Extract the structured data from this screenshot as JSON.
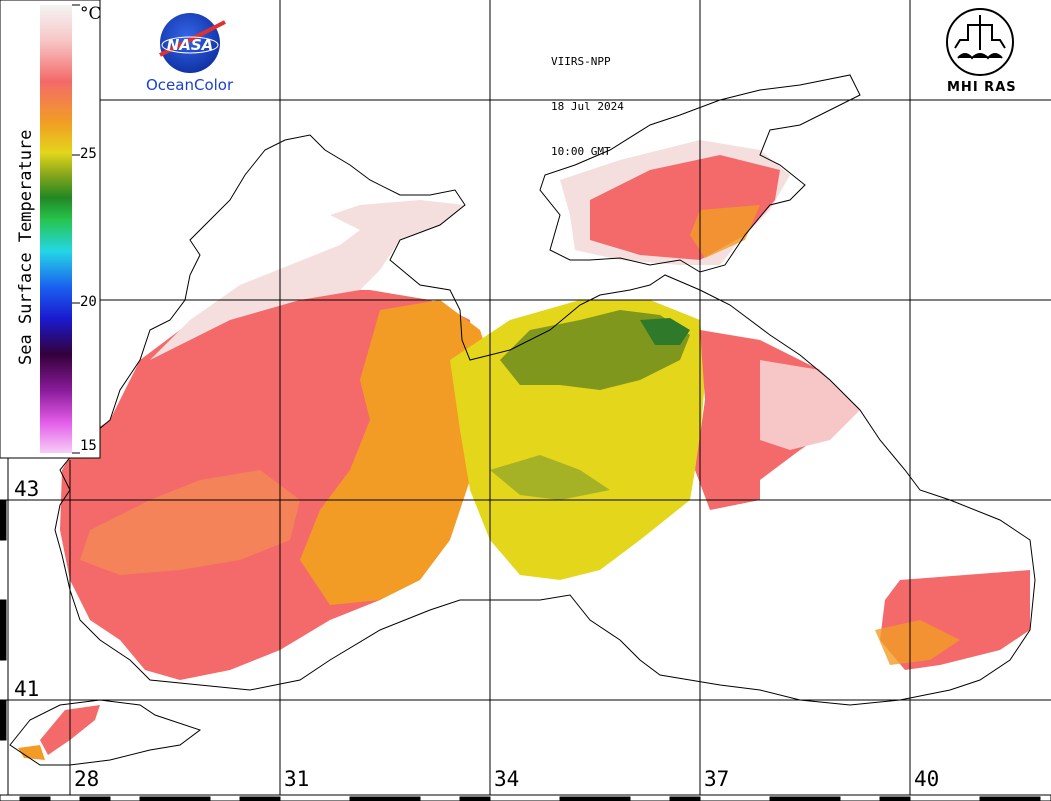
{
  "header": {
    "sensor": "VIIRS-NPP",
    "date": "18 Jul 2024",
    "time": "10:00 GMT"
  },
  "logos": {
    "nasa_text": "NASA",
    "oceancolor": "OceanColor",
    "mhi": "MHI RAS"
  },
  "colorbar": {
    "title": "Sea Surface Temperature",
    "unit": "°C",
    "ticks": [
      "25",
      "20",
      "15"
    ],
    "palette": [
      "#f4f4f4",
      "#f7c6c6",
      "#f46a6a",
      "#f29c25",
      "#e3d61b",
      "#85a51c",
      "#228822",
      "#27c54f",
      "#24d6e5",
      "#1a60f0",
      "#1a1ad0",
      "#33003a",
      "#8a1b9a",
      "#e25be7",
      "#f7cdf7"
    ]
  },
  "axes": {
    "latitudes": [
      "43",
      "41"
    ],
    "longitudes": [
      "28",
      "31",
      "34",
      "37",
      "40"
    ]
  },
  "colors": {
    "sst_warm": "#f46a6a",
    "sst_orange": "#f29c25",
    "sst_yellow": "#e3d61b",
    "sst_green": "#6c8c1c",
    "sst_pale": "#f5dede"
  }
}
